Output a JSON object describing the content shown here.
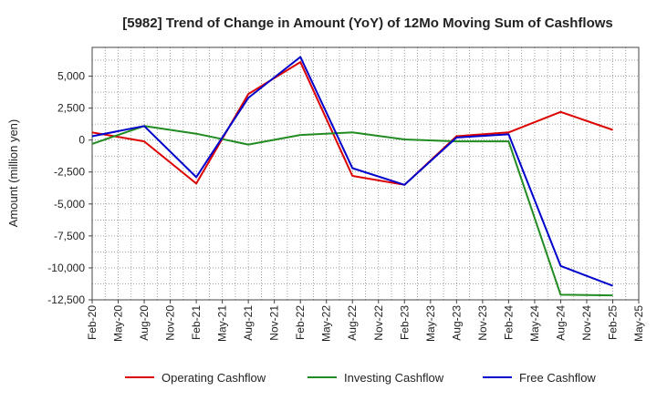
{
  "chart_data": {
    "type": "line",
    "title": "[5982]  Trend of Change in Amount (YoY) of 12Mo Moving Sum of Cashflows",
    "xlabel": "",
    "ylabel": "Amount (million yen)",
    "ylim": [
      -12500,
      7250
    ],
    "yticks": [
      5000,
      2500,
      0,
      -2500,
      -5000,
      -7500,
      -10000,
      -12500
    ],
    "ytick_labels": [
      "5,000",
      "2,500",
      "0",
      "-2,500",
      "-5,000",
      "-7,500",
      "-10,000",
      "-12,500"
    ],
    "categories": [
      "Feb-20",
      "May-20",
      "Aug-20",
      "Nov-20",
      "Feb-21",
      "May-21",
      "Aug-21",
      "Nov-21",
      "Feb-22",
      "May-22",
      "Aug-22",
      "Nov-22",
      "Feb-23",
      "May-23",
      "Aug-23",
      "Nov-23",
      "Feb-24",
      "May-24",
      "Aug-24",
      "Nov-24",
      "Feb-25",
      "May-25"
    ],
    "grid": true,
    "legend_position": "bottom",
    "series": [
      {
        "name": "Operating Cashflow",
        "color": "#dd0000",
        "values": [
          600,
          null,
          -100,
          null,
          -3400,
          null,
          3600,
          null,
          6100,
          null,
          -2800,
          null,
          -3500,
          null,
          300,
          null,
          600,
          null,
          2200,
          null,
          800,
          null
        ]
      },
      {
        "name": "Investing Cashflow",
        "color": "#228b22",
        "values": [
          -300,
          null,
          1100,
          null,
          500,
          null,
          -350,
          null,
          400,
          null,
          600,
          null,
          50,
          null,
          -100,
          null,
          -100,
          null,
          -12100,
          null,
          -12150,
          null
        ]
      },
      {
        "name": "Free Cashflow",
        "color": "#0000cc",
        "values": [
          300,
          null,
          1100,
          null,
          -2900,
          null,
          3300,
          null,
          6500,
          null,
          -2200,
          null,
          -3500,
          null,
          200,
          null,
          450,
          null,
          -9850,
          null,
          -11400,
          null
        ]
      }
    ]
  }
}
